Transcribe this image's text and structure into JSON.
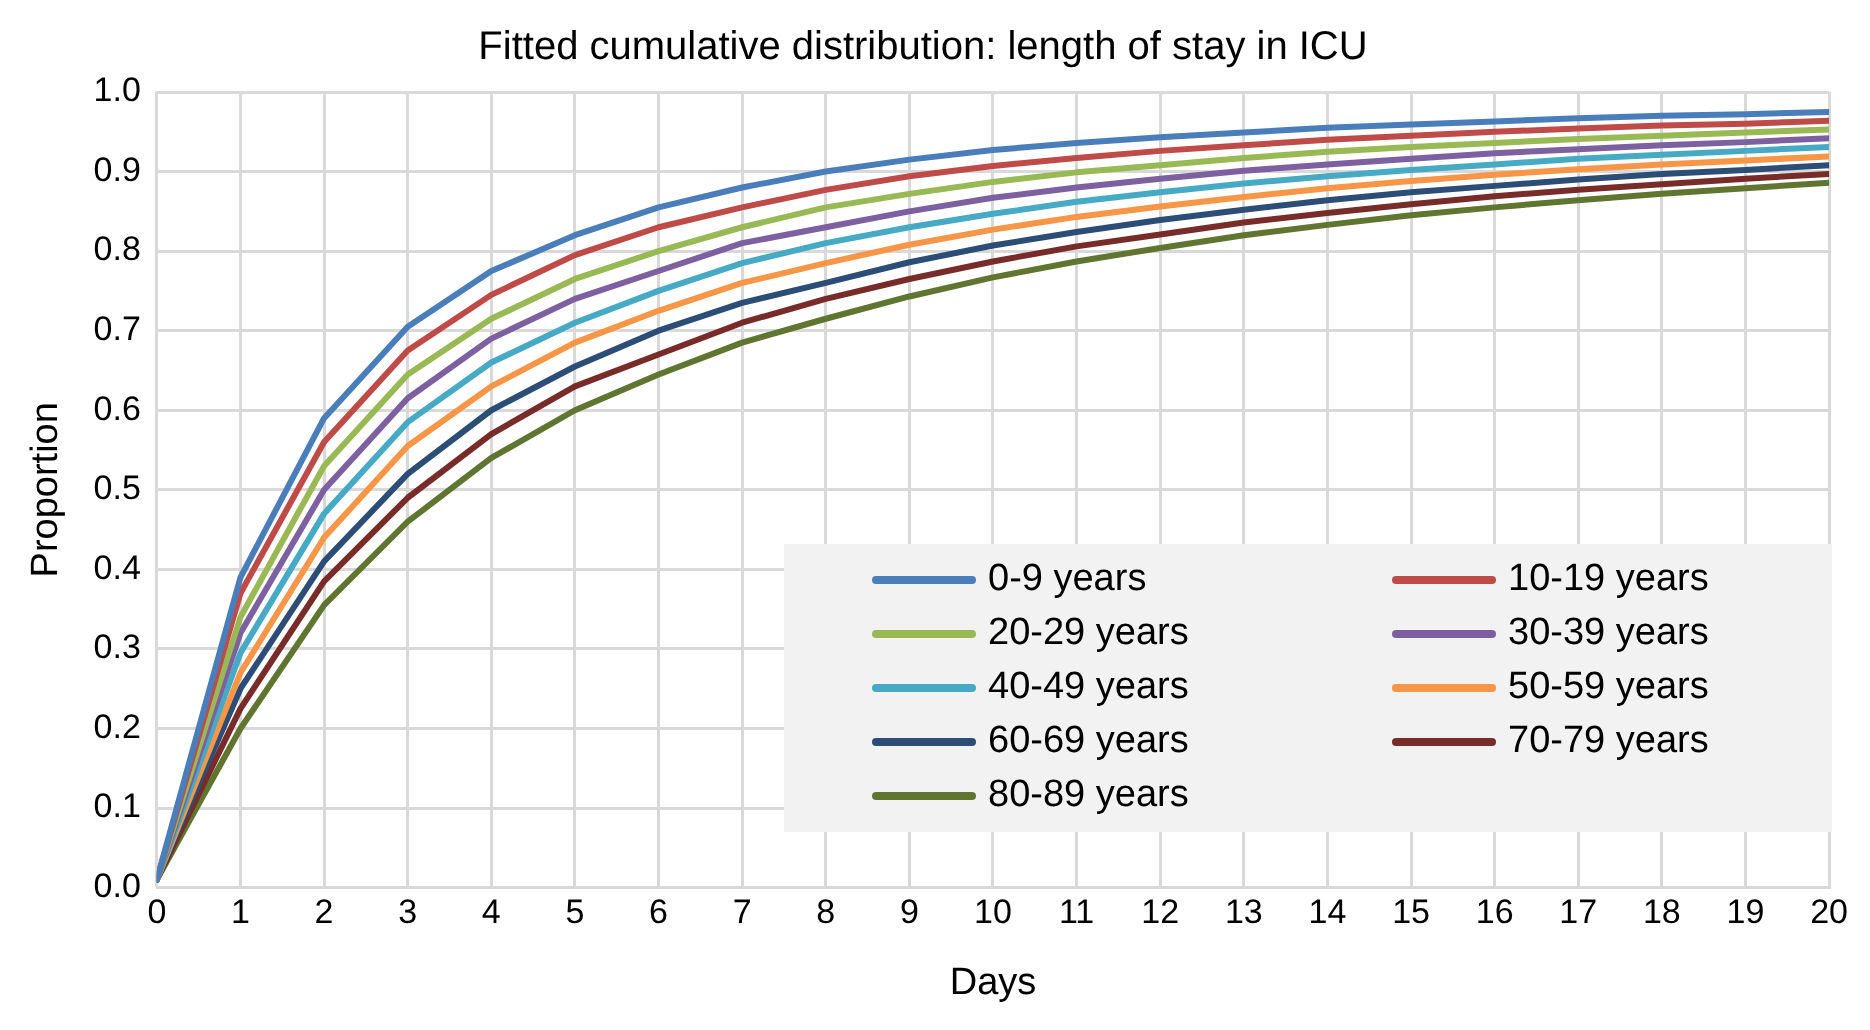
{
  "chart_data": {
    "type": "line",
    "title": "Fitted cumulative distribution: length of stay in ICU",
    "xlabel": "Days",
    "ylabel": "Proportion",
    "x": [
      0,
      1,
      2,
      3,
      4,
      5,
      6,
      7,
      8,
      9,
      10,
      11,
      12,
      13,
      14,
      15,
      16,
      17,
      18,
      19,
      20
    ],
    "series": [
      {
        "name": "0-9 years",
        "color": "#4a7ebb",
        "values": [
          0.01,
          0.39,
          0.59,
          0.705,
          0.775,
          0.82,
          0.855,
          0.88,
          0.9,
          0.915,
          0.927,
          0.936,
          0.943,
          0.949,
          0.955,
          0.959,
          0.963,
          0.967,
          0.97,
          0.972,
          0.975
        ]
      },
      {
        "name": "10-19 years",
        "color": "#be4b48",
        "values": [
          0.01,
          0.37,
          0.56,
          0.675,
          0.745,
          0.795,
          0.83,
          0.855,
          0.877,
          0.894,
          0.907,
          0.917,
          0.926,
          0.933,
          0.94,
          0.945,
          0.95,
          0.954,
          0.958,
          0.96,
          0.964
        ]
      },
      {
        "name": "20-29 years",
        "color": "#98b954",
        "values": [
          0.01,
          0.34,
          0.53,
          0.645,
          0.715,
          0.765,
          0.8,
          0.83,
          0.855,
          0.872,
          0.887,
          0.899,
          0.908,
          0.917,
          0.925,
          0.931,
          0.936,
          0.941,
          0.945,
          0.949,
          0.953
        ]
      },
      {
        "name": "30-39 years",
        "color": "#7d60a0",
        "values": [
          0.01,
          0.32,
          0.5,
          0.615,
          0.69,
          0.74,
          0.775,
          0.81,
          0.83,
          0.85,
          0.867,
          0.88,
          0.891,
          0.901,
          0.909,
          0.916,
          0.923,
          0.928,
          0.933,
          0.937,
          0.942
        ]
      },
      {
        "name": "40-49 years",
        "color": "#46aac5",
        "values": [
          0.01,
          0.295,
          0.47,
          0.585,
          0.66,
          0.71,
          0.75,
          0.785,
          0.81,
          0.83,
          0.847,
          0.862,
          0.874,
          0.885,
          0.894,
          0.902,
          0.909,
          0.916,
          0.921,
          0.926,
          0.931
        ]
      },
      {
        "name": "50-59 years",
        "color": "#f79646",
        "values": [
          0.01,
          0.27,
          0.44,
          0.555,
          0.63,
          0.685,
          0.725,
          0.76,
          0.785,
          0.808,
          0.827,
          0.843,
          0.856,
          0.868,
          0.879,
          0.888,
          0.896,
          0.903,
          0.909,
          0.914,
          0.919
        ]
      },
      {
        "name": "60-69 years",
        "color": "#2c4d75",
        "values": [
          0.01,
          0.25,
          0.41,
          0.52,
          0.6,
          0.655,
          0.7,
          0.735,
          0.76,
          0.786,
          0.807,
          0.824,
          0.839,
          0.852,
          0.864,
          0.874,
          0.882,
          0.89,
          0.897,
          0.902,
          0.908
        ]
      },
      {
        "name": "70-79 years",
        "color": "#772c2a",
        "values": [
          0.01,
          0.225,
          0.385,
          0.49,
          0.57,
          0.63,
          0.67,
          0.71,
          0.74,
          0.765,
          0.787,
          0.806,
          0.821,
          0.836,
          0.848,
          0.859,
          0.869,
          0.877,
          0.884,
          0.891,
          0.897
        ]
      },
      {
        "name": "80-89 years",
        "color": "#5f7530",
        "values": [
          0.01,
          0.2,
          0.355,
          0.46,
          0.54,
          0.6,
          0.645,
          0.685,
          0.715,
          0.743,
          0.767,
          0.787,
          0.804,
          0.82,
          0.833,
          0.845,
          0.855,
          0.864,
          0.872,
          0.879,
          0.886
        ]
      }
    ],
    "xlim": [
      0,
      20
    ],
    "xticks": [
      0,
      1,
      2,
      3,
      4,
      5,
      6,
      7,
      8,
      9,
      10,
      11,
      12,
      13,
      14,
      15,
      16,
      17,
      18,
      19,
      20
    ],
    "ylim": [
      0,
      1
    ],
    "yticks": [
      {
        "value": 0,
        "label": "0.0"
      },
      {
        "value": 0.1,
        "label": "0.1"
      },
      {
        "value": 0.2,
        "label": "0.2"
      },
      {
        "value": 0.3,
        "label": "0.3"
      },
      {
        "value": 0.4,
        "label": "0.4"
      },
      {
        "value": 0.5,
        "label": "0.5"
      },
      {
        "value": 0.6,
        "label": "0.6"
      },
      {
        "value": 0.7,
        "label": "0.7"
      },
      {
        "value": 0.8,
        "label": "0.8"
      },
      {
        "value": 0.9,
        "label": "0.9"
      },
      {
        "value": 1,
        "label": "1.0"
      }
    ],
    "grid": true,
    "legend": "bottom right",
    "marker": "none",
    "line_style": "solid"
  }
}
